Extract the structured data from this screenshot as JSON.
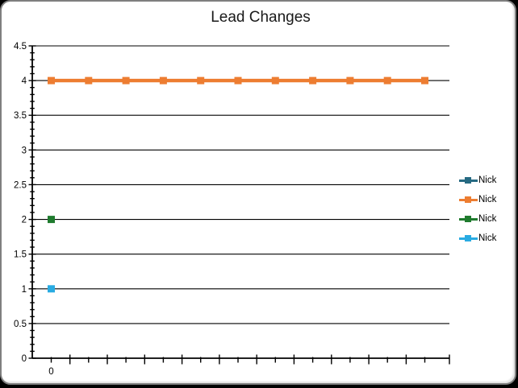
{
  "frame": {
    "background": "#ffffff",
    "border_color": "#7f7f7f",
    "outer_background": "#000000"
  },
  "chart_data": {
    "type": "line",
    "title": "Lead Changes",
    "xlabel": "",
    "ylabel": "",
    "categories": [
      "0",
      "",
      "",
      "",
      "",
      "",
      "",
      "",
      "",
      "",
      ""
    ],
    "x_tick_labels": [
      "0"
    ],
    "series": [
      {
        "name": "Nick",
        "color": "#266a82",
        "marker": "square",
        "values": [
          null,
          null,
          null,
          null,
          null,
          null,
          null,
          null,
          null,
          null,
          null
        ]
      },
      {
        "name": "Nick",
        "color": "#ed7d31",
        "marker": "square",
        "values": [
          4,
          4,
          4,
          4,
          4,
          4,
          4,
          4,
          4,
          4,
          4
        ]
      },
      {
        "name": "Nick",
        "color": "#1f7b2e",
        "marker": "square",
        "values": [
          2,
          null,
          null,
          null,
          null,
          null,
          null,
          null,
          null,
          null,
          null
        ]
      },
      {
        "name": "Nick",
        "color": "#29abe2",
        "marker": "square",
        "values": [
          1,
          null,
          null,
          null,
          null,
          null,
          null,
          null,
          null,
          null,
          null
        ]
      }
    ],
    "ylim": [
      0,
      4.5
    ],
    "y_major_step": 0.5,
    "y_minor_step": 0.1,
    "y_tick_labels": [
      "0",
      "0.5",
      "1",
      "1.5",
      "2",
      "2.5",
      "3",
      "3.5",
      "4",
      "4.5"
    ],
    "grid": "horizontal-major",
    "legend_position": "right",
    "axis_color": "#000000",
    "gridline_color": "#000000"
  }
}
